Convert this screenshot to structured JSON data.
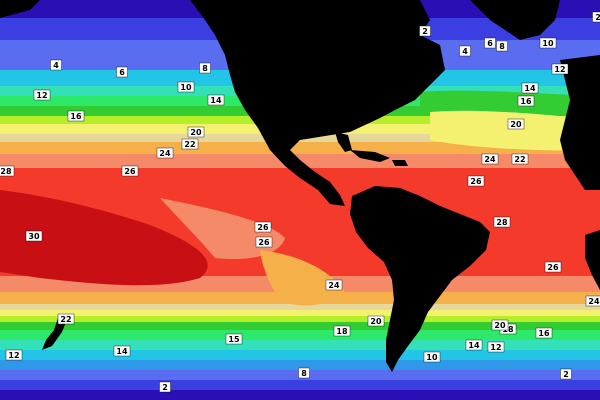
{
  "map": {
    "bands": [
      {
        "temp": 2,
        "color": "#2a0fb5"
      },
      {
        "temp": 4,
        "color": "#3b3ee0"
      },
      {
        "temp": 6,
        "color": "#5a6cf0"
      },
      {
        "temp": 8,
        "color": "#2f98e8"
      },
      {
        "temp": 10,
        "color": "#23c5e6"
      },
      {
        "temp": 12,
        "color": "#33e0b8"
      },
      {
        "temp": 14,
        "color": "#2ee86a"
      },
      {
        "temp": 16,
        "color": "#33cc33"
      },
      {
        "temp": 18,
        "color": "#b6ee2a"
      },
      {
        "temp": 20,
        "color": "#f4f070"
      },
      {
        "temp": 22,
        "color": "#e6d79a"
      },
      {
        "temp": 24,
        "color": "#f6b04a"
      },
      {
        "temp": 26,
        "color": "#f58a68"
      },
      {
        "temp": 28,
        "color": "#f43a2a"
      },
      {
        "temp": 30,
        "color": "#c80f14"
      }
    ],
    "land_color": "#000000",
    "labels": [
      "2",
      "4",
      "6",
      "8",
      "10",
      "12",
      "14",
      "16",
      "20",
      "22",
      "24",
      "26",
      "28",
      "30",
      "2",
      "4",
      "6",
      "8",
      "10",
      "12",
      "14",
      "16",
      "18",
      "20",
      "22",
      "24",
      "26",
      "28",
      "22",
      "12",
      "14",
      "15",
      "8",
      "2",
      "18",
      "20",
      "26",
      "24",
      "26",
      "10",
      "14",
      "12",
      "16",
      "20",
      "24",
      "2",
      "26"
    ]
  }
}
